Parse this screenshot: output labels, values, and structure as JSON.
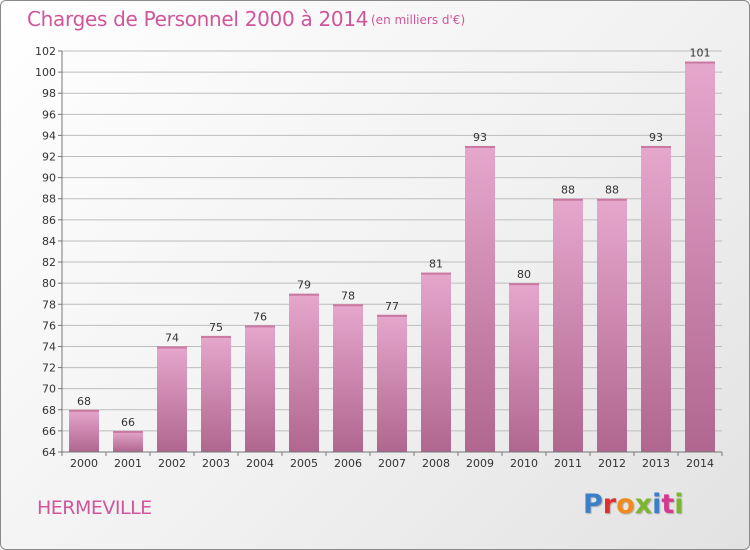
{
  "title": "Charges de Personnel 2000 à 2014",
  "subtitle": "(en milliers d'€)",
  "commune": "HERMEVILLE",
  "logo": {
    "text": "Proxiti",
    "letter_colors": [
      "#3a7fc8",
      "#e0302d",
      "#f08a1c",
      "#7cb62f",
      "#3a7fc8",
      "#d43a8f",
      "#7cb62f"
    ]
  },
  "colors": {
    "title": "#d0569a",
    "bar_top": "#e6a7cd",
    "bar_bottom": "#b0668f",
    "grid": "#bdbdbd"
  },
  "chart_data": {
    "type": "bar",
    "title": "Charges de Personnel 2000 à 2014",
    "subtitle": "(en milliers d'€)",
    "categories": [
      "2000",
      "2001",
      "2002",
      "2003",
      "2004",
      "2005",
      "2006",
      "2007",
      "2008",
      "2009",
      "2010",
      "2011",
      "2012",
      "2013",
      "2014"
    ],
    "values": [
      68,
      66,
      74,
      75,
      76,
      79,
      78,
      77,
      81,
      93,
      80,
      88,
      88,
      93,
      101
    ],
    "ylim": [
      64,
      102
    ],
    "ytick_step": 2,
    "grid": true,
    "xlabel": "",
    "ylabel": ""
  }
}
